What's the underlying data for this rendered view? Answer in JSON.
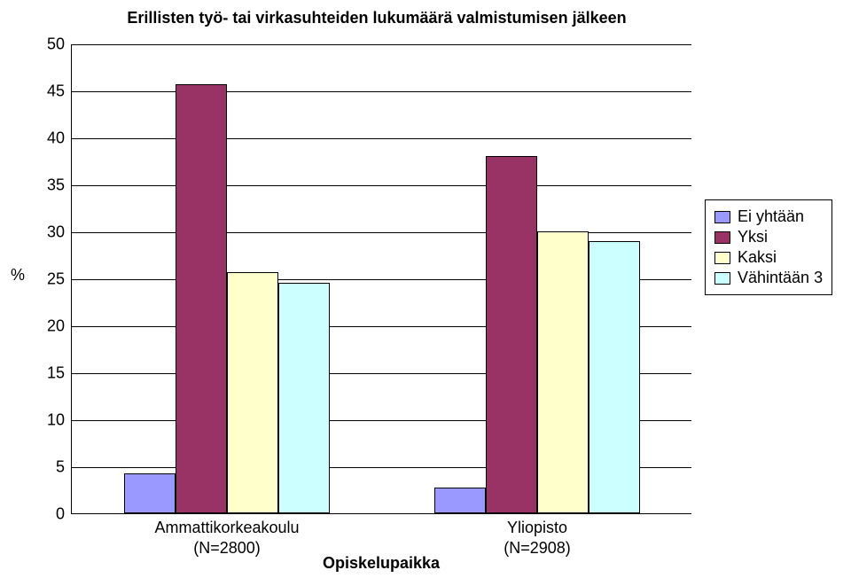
{
  "chart": {
    "type": "bar",
    "title": "Erillisten työ- tai virkasuhteiden lukumäärä valmistumisen jälkeen",
    "y_axis": {
      "label": "%",
      "min": 0,
      "max": 50,
      "step": 5
    },
    "x_axis": {
      "label": "Opiskelupaikka"
    },
    "categories": [
      {
        "name": "Ammattikorkeakoulu",
        "n": "(N=2800)",
        "values": [
          4.2,
          45.7,
          25.7,
          24.5
        ]
      },
      {
        "name": "Yliopisto",
        "n": "(N=2908)",
        "values": [
          2.7,
          38,
          30,
          29
        ]
      }
    ],
    "series": [
      {
        "label": "Ei yhtään",
        "color": "#9999ff"
      },
      {
        "label": "Yksi",
        "color": "#993366"
      },
      {
        "label": "Kaksi",
        "color": "#ffffcc"
      },
      {
        "label": "Vähintään 3",
        "color": "#ccffff"
      }
    ],
    "background_color": "#ffffff",
    "title_fontsize": 18,
    "label_fontsize": 18
  }
}
